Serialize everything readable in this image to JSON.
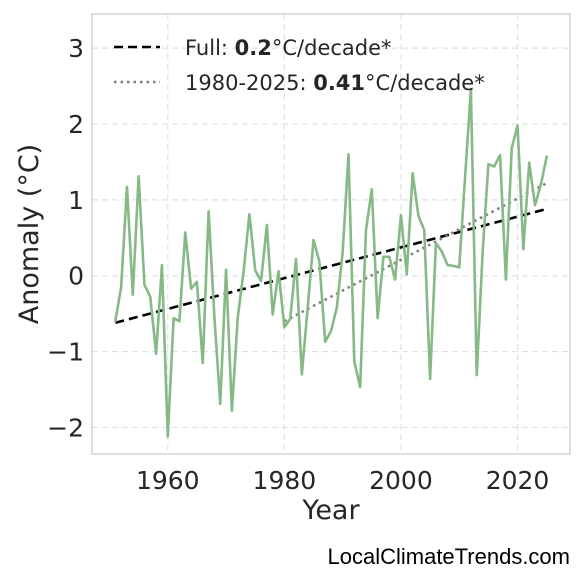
{
  "chart_data": {
    "type": "line",
    "title": "",
    "xlabel": "Year",
    "ylabel": "Anomaly (°C)",
    "xlim": [
      1947,
      2029
    ],
    "ylim": [
      -2.35,
      3.45
    ],
    "x_ticks": [
      1960,
      1980,
      2000,
      2020
    ],
    "y_ticks": [
      -2,
      -1,
      0,
      1,
      2,
      3
    ],
    "y_tick_labels": [
      "−2",
      "−1",
      "0",
      "1",
      "2",
      "3"
    ],
    "grid": true,
    "legend_position": "top-left",
    "series": [
      {
        "name": "",
        "color": "#86b985",
        "x": [
          1951,
          1952,
          1953,
          1954,
          1955,
          1956,
          1957,
          1958,
          1959,
          1960,
          1961,
          1962,
          1963,
          1964,
          1965,
          1966,
          1967,
          1968,
          1969,
          1970,
          1971,
          1972,
          1973,
          1974,
          1975,
          1976,
          1977,
          1978,
          1979,
          1980,
          1981,
          1982,
          1983,
          1984,
          1985,
          1986,
          1987,
          1988,
          1989,
          1990,
          1991,
          1992,
          1993,
          1994,
          1995,
          1996,
          1997,
          1998,
          1999,
          2000,
          2001,
          2002,
          2003,
          2004,
          2005,
          2006,
          2007,
          2008,
          2009,
          2010,
          2011,
          2012,
          2013,
          2014,
          2015,
          2016,
          2017,
          2018,
          2019,
          2020,
          2021,
          2022,
          2023,
          2024,
          2025
        ],
        "values": [
          -0.6,
          -0.15,
          1.17,
          -0.25,
          1.31,
          -0.12,
          -0.28,
          -1.03,
          0.14,
          -2.12,
          -0.56,
          -0.6,
          0.57,
          -0.17,
          -0.08,
          -1.15,
          0.85,
          -0.55,
          -1.69,
          0.08,
          -1.78,
          -0.55,
          0.05,
          0.81,
          0.07,
          -0.07,
          0.67,
          -0.51,
          0.06,
          -0.68,
          -0.57,
          0.22,
          -1.3,
          -0.42,
          0.47,
          0.19,
          -0.87,
          -0.73,
          -0.42,
          0.31,
          1.6,
          -1.13,
          -1.47,
          0.6,
          1.14,
          -0.56,
          0.25,
          0.25,
          -0.05,
          0.8,
          0.02,
          1.35,
          0.79,
          0.6,
          -1.36,
          0.43,
          0.32,
          0.14,
          0.13,
          0.11,
          1.3,
          2.46,
          -1.31,
          0.29,
          1.47,
          1.44,
          1.59,
          -0.05,
          1.68,
          1.98,
          0.35,
          1.49,
          0.93,
          1.2,
          1.57
        ]
      }
    ],
    "trend_lines": [
      {
        "name": "Full",
        "rate_value": "0.2",
        "rate_unit": "°C/decade*",
        "style": "dashed",
        "color": "#000000",
        "x": [
          1951,
          2025
        ],
        "y": [
          -0.62,
          0.88
        ]
      },
      {
        "name": "1980-2025",
        "rate_value": "0.41",
        "rate_unit": "°C/decade*",
        "style": "dotted",
        "color": "#7f7f7f",
        "x": [
          1980,
          2025
        ],
        "y": [
          -0.6,
          1.22
        ]
      }
    ]
  },
  "legend": {
    "full_prefix": "Full: ",
    "full_value": "0.2",
    "full_unit": "°C/decade*",
    "recent_prefix": "1980-2025: ",
    "recent_value": "0.41",
    "recent_unit": "°C/decade*"
  },
  "watermark": "LocalClimateTrends.com"
}
